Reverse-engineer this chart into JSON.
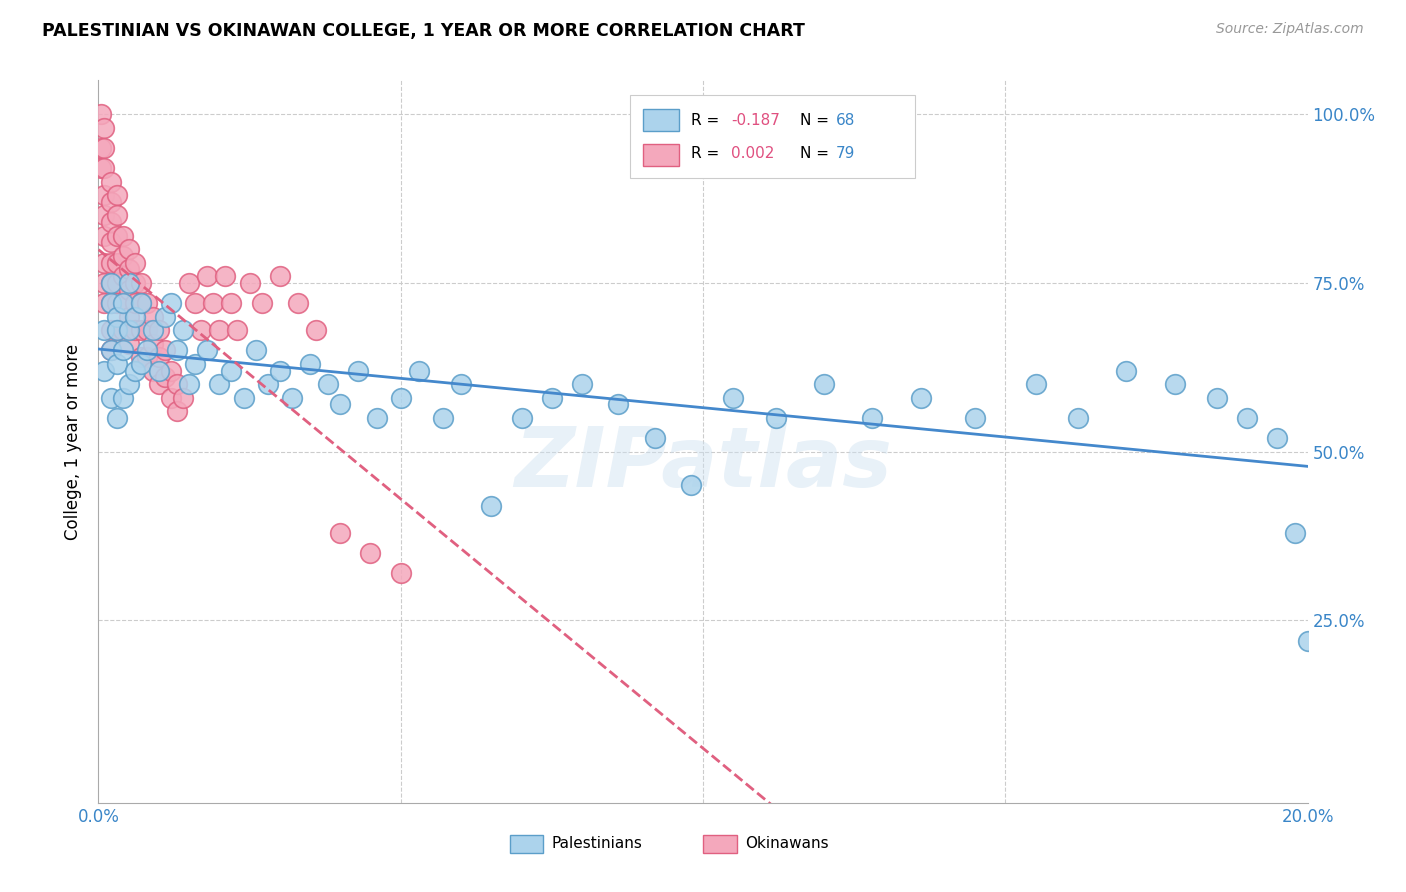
{
  "title": "PALESTINIAN VS OKINAWAN COLLEGE, 1 YEAR OR MORE CORRELATION CHART",
  "source": "Source: ZipAtlas.com",
  "ylabel": "College, 1 year or more",
  "x_min": 0.0,
  "x_max": 0.2,
  "y_min": 0.0,
  "y_max": 1.05,
  "palestinians_R": -0.187,
  "palestinians_N": 68,
  "okinawans_R": 0.002,
  "okinawans_N": 79,
  "blue_color": "#acd3ec",
  "pink_color": "#f4a8bc",
  "blue_edge_color": "#5b9ec9",
  "pink_edge_color": "#e06080",
  "blue_line_color": "#4488cc",
  "pink_line_color": "#e06080",
  "legend_label_blue": "Palestinians",
  "legend_label_pink": "Okinawans",
  "watermark": "ZIPatlas",
  "palestinians_x": [
    0.001,
    0.001,
    0.002,
    0.002,
    0.002,
    0.002,
    0.003,
    0.003,
    0.003,
    0.003,
    0.004,
    0.004,
    0.004,
    0.005,
    0.005,
    0.005,
    0.006,
    0.006,
    0.007,
    0.007,
    0.008,
    0.009,
    0.01,
    0.011,
    0.012,
    0.013,
    0.014,
    0.015,
    0.016,
    0.018,
    0.02,
    0.022,
    0.024,
    0.026,
    0.028,
    0.03,
    0.032,
    0.035,
    0.038,
    0.04,
    0.043,
    0.046,
    0.05,
    0.053,
    0.057,
    0.06,
    0.065,
    0.07,
    0.075,
    0.08,
    0.086,
    0.092,
    0.098,
    0.105,
    0.112,
    0.12,
    0.128,
    0.136,
    0.145,
    0.155,
    0.162,
    0.17,
    0.178,
    0.185,
    0.19,
    0.195,
    0.198,
    0.2
  ],
  "palestinians_y": [
    0.68,
    0.62,
    0.72,
    0.65,
    0.58,
    0.75,
    0.7,
    0.63,
    0.55,
    0.68,
    0.72,
    0.65,
    0.58,
    0.68,
    0.75,
    0.6,
    0.62,
    0.7,
    0.63,
    0.72,
    0.65,
    0.68,
    0.62,
    0.7,
    0.72,
    0.65,
    0.68,
    0.6,
    0.63,
    0.65,
    0.6,
    0.62,
    0.58,
    0.65,
    0.6,
    0.62,
    0.58,
    0.63,
    0.6,
    0.57,
    0.62,
    0.55,
    0.58,
    0.62,
    0.55,
    0.6,
    0.42,
    0.55,
    0.58,
    0.6,
    0.57,
    0.52,
    0.45,
    0.58,
    0.55,
    0.6,
    0.55,
    0.58,
    0.55,
    0.6,
    0.55,
    0.62,
    0.6,
    0.58,
    0.55,
    0.52,
    0.38,
    0.22
  ],
  "okinawans_x": [
    0.0005,
    0.0005,
    0.0005,
    0.001,
    0.001,
    0.001,
    0.001,
    0.001,
    0.001,
    0.001,
    0.001,
    0.001,
    0.002,
    0.002,
    0.002,
    0.002,
    0.002,
    0.002,
    0.002,
    0.002,
    0.002,
    0.003,
    0.003,
    0.003,
    0.003,
    0.003,
    0.003,
    0.003,
    0.004,
    0.004,
    0.004,
    0.004,
    0.004,
    0.005,
    0.005,
    0.005,
    0.005,
    0.005,
    0.006,
    0.006,
    0.006,
    0.006,
    0.007,
    0.007,
    0.007,
    0.007,
    0.008,
    0.008,
    0.008,
    0.009,
    0.009,
    0.009,
    0.01,
    0.01,
    0.01,
    0.011,
    0.011,
    0.012,
    0.012,
    0.013,
    0.013,
    0.014,
    0.015,
    0.016,
    0.017,
    0.018,
    0.019,
    0.02,
    0.021,
    0.022,
    0.023,
    0.025,
    0.027,
    0.03,
    0.033,
    0.036,
    0.04,
    0.045,
    0.05
  ],
  "okinawans_y": [
    1.0,
    0.95,
    0.92,
    0.98,
    0.95,
    0.92,
    0.88,
    0.85,
    0.82,
    0.78,
    0.75,
    0.72,
    0.9,
    0.87,
    0.84,
    0.81,
    0.78,
    0.75,
    0.72,
    0.68,
    0.65,
    0.88,
    0.85,
    0.82,
    0.78,
    0.75,
    0.72,
    0.68,
    0.82,
    0.79,
    0.76,
    0.72,
    0.68,
    0.8,
    0.77,
    0.74,
    0.7,
    0.66,
    0.78,
    0.75,
    0.72,
    0.68,
    0.75,
    0.72,
    0.68,
    0.64,
    0.72,
    0.68,
    0.64,
    0.7,
    0.66,
    0.62,
    0.68,
    0.64,
    0.6,
    0.65,
    0.61,
    0.62,
    0.58,
    0.6,
    0.56,
    0.58,
    0.75,
    0.72,
    0.68,
    0.76,
    0.72,
    0.68,
    0.76,
    0.72,
    0.68,
    0.75,
    0.72,
    0.76,
    0.72,
    0.68,
    0.38,
    0.35,
    0.32
  ]
}
